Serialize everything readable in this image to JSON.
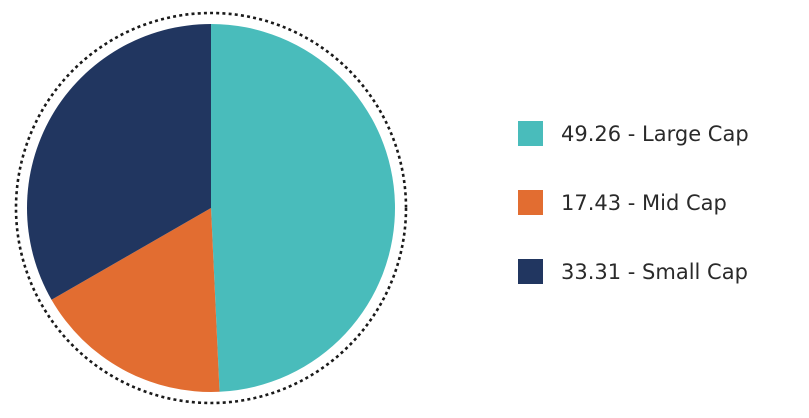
{
  "chart_data": {
    "type": "pie",
    "categories": [
      "Large Cap",
      "Mid Cap",
      "Small Cap"
    ],
    "values": [
      49.26,
      17.43,
      33.31
    ],
    "labels": [
      "49.26 - Large Cap",
      "17.43 - Mid Cap",
      "33.31 - Small Cap"
    ],
    "colors": [
      "#49bcbb",
      "#e26d31",
      "#213660"
    ],
    "start_angle": "12 o'clock",
    "direction": "clockwise",
    "outer_ring": "dotted",
    "legend_position": "right"
  }
}
